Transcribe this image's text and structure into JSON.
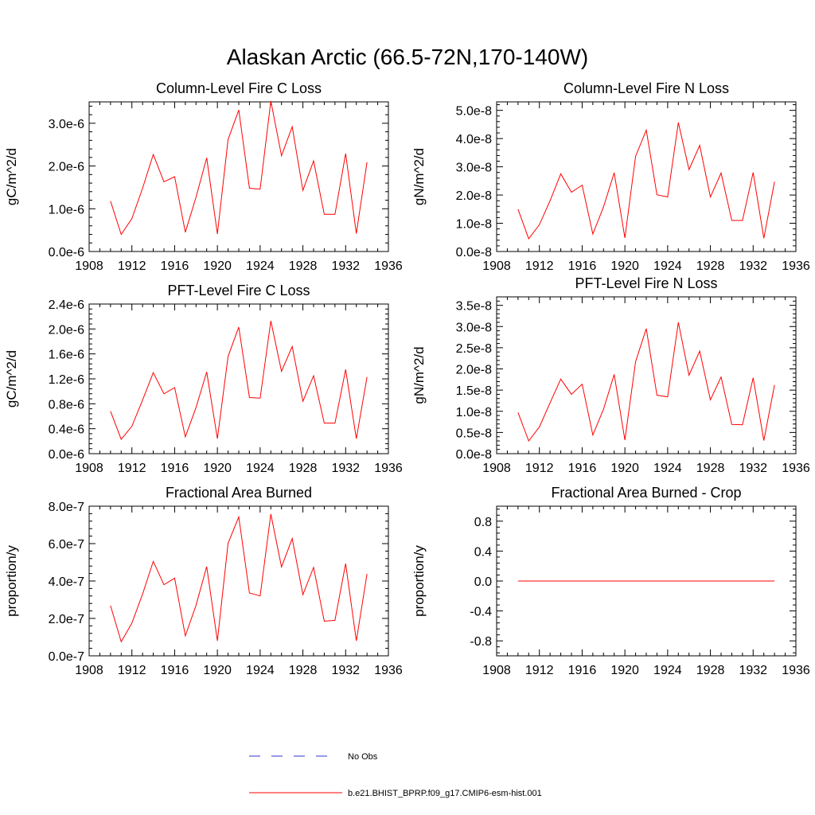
{
  "figure_title": "Alaskan Arctic (66.5-72N,170-140W)",
  "colors": {
    "model": "#ff0000",
    "obs": "#3333cc"
  },
  "legend": [
    {
      "label": "No Obs",
      "style": "dashed",
      "color": "#3333cc"
    },
    {
      "label": "b.e21.BHIST_BPRP.f09_g17.CMIP6-esm-hist.001",
      "style": "solid",
      "color": "#ff0000"
    }
  ],
  "chart_data": [
    {
      "type": "line",
      "title": "Column-Level Fire C Loss",
      "ylabel": "gC/m^2/d",
      "xlim": [
        1908,
        1936
      ],
      "xticks": [
        1908,
        1912,
        1916,
        1920,
        1924,
        1928,
        1932,
        1936
      ],
      "ylim": [
        0,
        3.5e-06
      ],
      "yticks": [
        0,
        1e-06,
        2e-06,
        3e-06
      ],
      "ytick_labels": [
        "0.0e-6",
        "1.0e-6",
        "2.0e-6",
        "3.0e-6"
      ],
      "x": [
        1910,
        1911,
        1912,
        1913,
        1914,
        1915,
        1916,
        1917,
        1918,
        1919,
        1920,
        1921,
        1922,
        1923,
        1924,
        1925,
        1926,
        1927,
        1928,
        1929,
        1930,
        1931,
        1932,
        1933,
        1934
      ],
      "series": [
        {
          "values": [
            1.18e-06,
            4e-07,
            7.7e-07,
            1.48e-06,
            2.27e-06,
            1.63e-06,
            1.75e-06,
            4.5e-07,
            1.27e-06,
            2.19e-06,
            4.1e-07,
            2.62e-06,
            3.31e-06,
            1.48e-06,
            1.46e-06,
            3.52e-06,
            2.24e-06,
            2.92e-06,
            1.43e-06,
            2.12e-06,
            8.7e-07,
            8.7e-07,
            2.29e-06,
            4.2e-07,
            2.09e-06
          ]
        }
      ]
    },
    {
      "type": "line",
      "title": "Column-Level Fire N Loss",
      "ylabel": "gN/m^2/d",
      "xlim": [
        1908,
        1936
      ],
      "xticks": [
        1908,
        1912,
        1916,
        1920,
        1924,
        1928,
        1932,
        1936
      ],
      "ylim": [
        0,
        5.3e-08
      ],
      "yticks": [
        0,
        1e-08,
        2e-08,
        3e-08,
        4e-08,
        5e-08
      ],
      "ytick_labels": [
        "0.0e-8",
        "1.0e-8",
        "2.0e-8",
        "3.0e-8",
        "4.0e-8",
        "5.0e-8"
      ],
      "x": [
        1910,
        1911,
        1912,
        1913,
        1914,
        1915,
        1916,
        1917,
        1918,
        1919,
        1920,
        1921,
        1922,
        1923,
        1924,
        1925,
        1926,
        1927,
        1928,
        1929,
        1930,
        1931,
        1932,
        1933,
        1934
      ],
      "series": [
        {
          "values": [
            1.5e-08,
            4.5e-09,
            9.5e-09,
            1.8e-08,
            2.75e-08,
            2.1e-08,
            2.35e-08,
            6.2e-09,
            1.58e-08,
            2.79e-08,
            4.8e-09,
            3.37e-08,
            4.3e-08,
            2.01e-08,
            1.93e-08,
            4.57e-08,
            2.9e-08,
            3.76e-08,
            1.93e-08,
            2.78e-08,
            1.1e-08,
            1.1e-08,
            2.8e-08,
            4.7e-09,
            2.47e-08
          ]
        }
      ]
    },
    {
      "type": "line",
      "title": "PFT-Level Fire C Loss",
      "ylabel": "gC/m^2/d",
      "xlim": [
        1908,
        1936
      ],
      "xticks": [
        1908,
        1912,
        1916,
        1920,
        1924,
        1928,
        1932,
        1936
      ],
      "ylim": [
        0,
        2.4e-06
      ],
      "yticks": [
        0,
        4e-07,
        8e-07,
        1.2e-06,
        1.6e-06,
        2e-06,
        2.4e-06
      ],
      "ytick_labels": [
        "0.0e-6",
        "0.4e-6",
        "0.8e-6",
        "1.2e-6",
        "1.6e-6",
        "2.0e-6",
        "2.4e-6"
      ],
      "x": [
        1910,
        1911,
        1912,
        1913,
        1914,
        1915,
        1916,
        1917,
        1918,
        1919,
        1920,
        1921,
        1922,
        1923,
        1924,
        1925,
        1926,
        1927,
        1928,
        1929,
        1930,
        1931,
        1932,
        1933,
        1934
      ],
      "series": [
        {
          "values": [
            6.8e-07,
            2.3e-07,
            4.4e-07,
            8.6e-07,
            1.3e-06,
            9.6e-07,
            1.06e-06,
            2.7e-07,
            7.4e-07,
            1.31e-06,
            2.4e-07,
            1.56e-06,
            2.03e-06,
            9e-07,
            8.9e-07,
            2.13e-06,
            1.32e-06,
            1.72e-06,
            8.4e-07,
            1.25e-06,
            4.9e-07,
            4.9e-07,
            1.35e-06,
            2.4e-07,
            1.23e-06
          ]
        }
      ]
    },
    {
      "type": "line",
      "title": "PFT-Level Fire N Loss",
      "ylabel": "gN/m^2/d",
      "xlim": [
        1908,
        1936
      ],
      "xticks": [
        1908,
        1912,
        1916,
        1920,
        1924,
        1928,
        1932,
        1936
      ],
      "ylim": [
        0,
        3.7e-08
      ],
      "yticks": [
        0,
        5e-09,
        1e-08,
        1.5e-08,
        2e-08,
        2.5e-08,
        3e-08,
        3.5e-08
      ],
      "ytick_labels": [
        "0.0e-8",
        "0.5e-8",
        "1.0e-8",
        "1.5e-8",
        "2.0e-8",
        "2.5e-8",
        "3.0e-8",
        "3.5e-8"
      ],
      "x": [
        1910,
        1911,
        1912,
        1913,
        1914,
        1915,
        1916,
        1917,
        1918,
        1919,
        1920,
        1921,
        1922,
        1923,
        1924,
        1925,
        1926,
        1927,
        1928,
        1929,
        1930,
        1931,
        1932,
        1933,
        1934
      ],
      "series": [
        {
          "values": [
            9.7e-09,
            3e-09,
            6.3e-09,
            1.2e-08,
            1.76e-08,
            1.4e-08,
            1.64e-08,
            4.4e-09,
            1.05e-08,
            1.87e-08,
            3.2e-09,
            2.17e-08,
            2.95e-08,
            1.38e-08,
            1.34e-08,
            3.1e-08,
            1.85e-08,
            2.42e-08,
            1.27e-08,
            1.81e-08,
            6.9e-09,
            6.8e-09,
            1.79e-08,
            3.1e-09,
            1.62e-08
          ]
        }
      ]
    },
    {
      "type": "line",
      "title": "Fractional Area Burned",
      "ylabel": "proportion/y",
      "xlim": [
        1908,
        1936
      ],
      "xticks": [
        1908,
        1912,
        1916,
        1920,
        1924,
        1928,
        1932,
        1936
      ],
      "ylim": [
        0,
        8e-07
      ],
      "yticks": [
        0,
        2e-07,
        4e-07,
        6e-07,
        8e-07
      ],
      "ytick_labels": [
        "0.0e-7",
        "2.0e-7",
        "4.0e-7",
        "6.0e-7",
        "8.0e-7"
      ],
      "x": [
        1910,
        1911,
        1912,
        1913,
        1914,
        1915,
        1916,
        1917,
        1918,
        1919,
        1920,
        1921,
        1922,
        1923,
        1924,
        1925,
        1926,
        1927,
        1928,
        1929,
        1930,
        1931,
        1932,
        1933,
        1934
      ],
      "series": [
        {
          "values": [
            2.68e-07,
            7.5e-08,
            1.75e-07,
            3.3e-07,
            5.05e-07,
            3.8e-07,
            4.15e-07,
            1.07e-07,
            2.7e-07,
            4.77e-07,
            8e-08,
            6.02e-07,
            7.43e-07,
            3.36e-07,
            3.2e-07,
            7.58e-07,
            4.75e-07,
            6.27e-07,
            3.27e-07,
            4.73e-07,
            1.85e-07,
            1.9e-07,
            4.93e-07,
            8e-08,
            4.38e-07
          ]
        }
      ]
    },
    {
      "type": "line",
      "title": "Fractional Area Burned - Crop",
      "ylabel": "proportion/y",
      "xlim": [
        1908,
        1936
      ],
      "xticks": [
        1908,
        1912,
        1916,
        1920,
        1924,
        1928,
        1932,
        1936
      ],
      "ylim": [
        -1,
        1
      ],
      "yticks": [
        -0.8,
        -0.4,
        0,
        0.4,
        0.8
      ],
      "ytick_labels": [
        "-0.8",
        "-0.4",
        "0.0",
        "0.4",
        "0.8"
      ],
      "x": [
        1910,
        1911,
        1912,
        1913,
        1914,
        1915,
        1916,
        1917,
        1918,
        1919,
        1920,
        1921,
        1922,
        1923,
        1924,
        1925,
        1926,
        1927,
        1928,
        1929,
        1930,
        1931,
        1932,
        1933,
        1934
      ],
      "series": [
        {
          "values": [
            0,
            0,
            0,
            0,
            0,
            0,
            0,
            0,
            0,
            0,
            0,
            0,
            0,
            0,
            0,
            0,
            0,
            0,
            0,
            0,
            0,
            0,
            0,
            0,
            0
          ]
        }
      ]
    }
  ]
}
